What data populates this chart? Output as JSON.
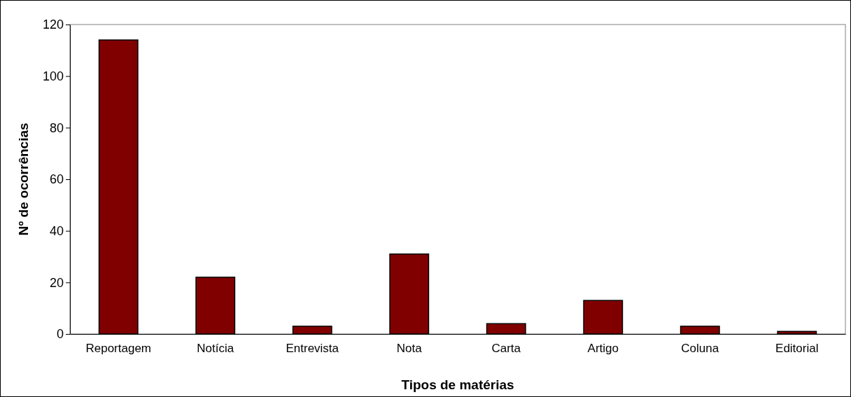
{
  "chart_data": {
    "type": "bar",
    "xlabel": "Tipos de matérias",
    "ylabel": "Nº de ocorrências",
    "categories": [
      "Reportagem",
      "Notícia",
      "Entrevista",
      "Nota",
      "Carta",
      "Artigo",
      "Coluna",
      "Editorial"
    ],
    "values": [
      114,
      22,
      3,
      31,
      4,
      13,
      3,
      1
    ],
    "color": "#800000",
    "ylim": [
      0,
      120
    ],
    "yticks": [
      0,
      20,
      40,
      60,
      80,
      100,
      120
    ],
    "grid": false
  }
}
